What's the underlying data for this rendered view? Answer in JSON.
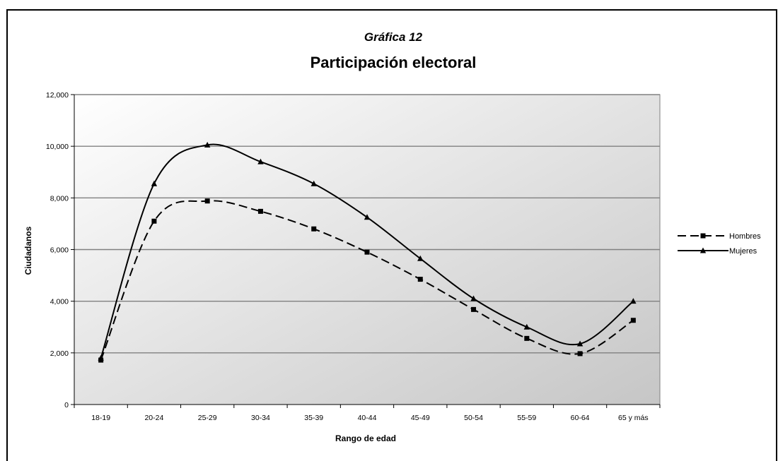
{
  "chart_data": {
    "type": "line",
    "pretitle": "Gráfica 12",
    "title": "Participación electoral",
    "xlabel": "Rango de edad",
    "ylabel": "Ciudadanos",
    "ylim": [
      0,
      12000
    ],
    "yticks": [
      "0",
      "2,000",
      "4,000",
      "6,000",
      "8,000",
      "10,000",
      "12,000"
    ],
    "categories": [
      "18-19",
      "20-24",
      "25-29",
      "30-34",
      "35-39",
      "40-44",
      "45-49",
      "50-54",
      "55-59",
      "60-64",
      "65 y más"
    ],
    "series": [
      {
        "name": "Hombres",
        "values": [
          1720,
          7100,
          7880,
          7480,
          6800,
          5900,
          4850,
          3680,
          2560,
          1970,
          3260
        ],
        "line": "dashed",
        "marker": "square"
      },
      {
        "name": "Mujeres",
        "values": [
          1800,
          8550,
          10050,
          9400,
          8550,
          7250,
          5650,
          4100,
          3000,
          2350,
          4000
        ],
        "line": "solid",
        "marker": "triangle"
      }
    ],
    "grid": true,
    "legend_position": "right",
    "colors": {
      "background_gradient_start": "#ffffff",
      "background_gradient_end": "#c8c8c8",
      "line": "#000000",
      "grid": "#808080"
    }
  }
}
